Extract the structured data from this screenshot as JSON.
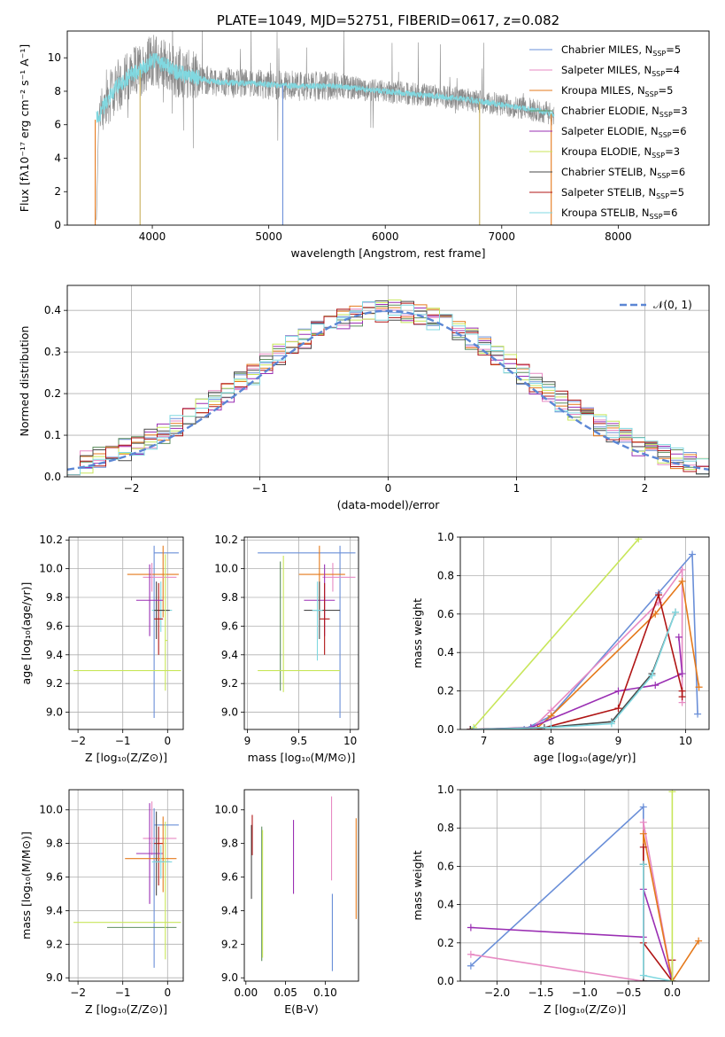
{
  "figure_title": "PLATE=1049, MJD=52751, FIBERID=0617, z=0.082",
  "series_colors": [
    "#6a8fd8",
    "#e78ac3",
    "#e5791b",
    "#5f8f5f",
    "#9a2fb3",
    "#c8e65a",
    "#4a4a4a",
    "#b01515",
    "#80d8e0"
  ],
  "chart_data": [
    {
      "id": "spectrum",
      "type": "line",
      "title": "PLATE=1049, MJD=52751, FIBERID=0617, z=0.082",
      "xlabel": "wavelength [Angstrom, rest frame]",
      "ylabel": "Flux [fλ10⁻¹⁷ erg cm⁻² s⁻¹ A⁻¹]",
      "xlim": [
        3270,
        8780
      ],
      "ylim": [
        0,
        11.6
      ],
      "xticks": [
        4000,
        5000,
        6000,
        7000,
        8000
      ],
      "yticks": [
        0,
        2,
        4,
        6,
        8,
        10
      ],
      "grid": false,
      "legend": "top-right",
      "legend_entries": [
        {
          "main": "Chabrier MILES, N",
          "sub": "SSP",
          "tail": "=5",
          "color": "#6a8fd8"
        },
        {
          "main": "Salpeter MILES, N",
          "sub": "SSP",
          "tail": "=4",
          "color": "#e78ac3"
        },
        {
          "main": "Kroupa MILES, N",
          "sub": "SSP",
          "tail": "=5",
          "color": "#e5791b"
        },
        {
          "main": "Chabrier ELODIE, N",
          "sub": "SSP",
          "tail": "=3",
          "color": "#5f8f5f"
        },
        {
          "main": "Salpeter ELODIE, N",
          "sub": "SSP",
          "tail": "=6",
          "color": "#9a2fb3"
        },
        {
          "main": "Kroupa ELODIE, N",
          "sub": "SSP",
          "tail": "=3",
          "color": "#c8e65a"
        },
        {
          "main": "Chabrier STELIB, N",
          "sub": "SSP",
          "tail": "=6",
          "color": "#4a4a4a"
        },
        {
          "main": "Salpeter STELIB, N",
          "sub": "SSP",
          "tail": "=5",
          "color": "#b01515"
        },
        {
          "main": "Kroupa STELIB, N",
          "sub": "SSP",
          "tail": "=6",
          "color": "#80d8e0"
        }
      ],
      "data_color": "#8a8a8a",
      "model_color": "#80d8e0",
      "continuum": {
        "x": [
          3520,
          3600,
          3700,
          3800,
          3900,
          4000,
          4100,
          4200,
          4300,
          4400,
          4500,
          4700,
          5000,
          5300,
          5600,
          6000,
          6300,
          6600,
          6800,
          7000,
          7200,
          7400,
          7450
        ],
        "y": [
          6.3,
          7.3,
          8.3,
          8.9,
          9.3,
          9.9,
          9.6,
          9.2,
          8.9,
          8.8,
          8.6,
          8.5,
          8.4,
          8.3,
          8.3,
          8.0,
          7.8,
          7.6,
          7.4,
          7.2,
          7.0,
          6.7,
          6.6
        ]
      },
      "data_range": [
        3520,
        7450
      ],
      "drops": [
        3510,
        3895,
        5120,
        6810,
        7425
      ]
    },
    {
      "id": "residuals",
      "type": "bar",
      "xlabel": "(data-model)/error",
      "ylabel": "Normed distribution",
      "xlim": [
        -2.5,
        2.5
      ],
      "ylim": [
        0,
        0.46
      ],
      "xticks": [
        -2,
        -1,
        0,
        1,
        2
      ],
      "yticks": [
        0.0,
        0.1,
        0.2,
        0.3,
        0.4
      ],
      "grid": true,
      "legend": "top-right",
      "legend_label": "𝒩(0, 1)",
      "gauss_color": "#5b86d4",
      "bin_width": 0.1
    },
    {
      "id": "age-vs-Z",
      "type": "scatter",
      "xlabel": "Z [log₁₀(Z/Z⊙)]",
      "ylabel": "age  [log₁₀(age/yr)]",
      "xlim": [
        -2.2,
        0.35
      ],
      "ylim": [
        8.88,
        10.22
      ],
      "xticks": [
        -2,
        -1,
        0
      ],
      "yticks": [
        9.0,
        9.2,
        9.4,
        9.6,
        9.8,
        10.0,
        10.2
      ],
      "grid": true,
      "points": [
        {
          "color": "#6a8fd8",
          "x": -0.3,
          "xerr": [
            0.0,
            0.55
          ],
          "y": 10.11,
          "yerr": [
            1.15,
            0.05
          ]
        },
        {
          "color": "#e5791b",
          "x": -0.1,
          "xerr": [
            0.8,
            0.35
          ],
          "y": 9.96,
          "yerr": [
            0.3,
            0.2
          ]
        },
        {
          "color": "#e78ac3",
          "x": -0.35,
          "xerr": [
            0.2,
            0.55
          ],
          "y": 9.94,
          "yerr": [
            0.1,
            0.1
          ]
        },
        {
          "color": "#80d8e0",
          "x": -0.15,
          "xerr": [
            0.2,
            0.25
          ],
          "y": 9.71,
          "yerr": [
            0.15,
            0.2
          ]
        },
        {
          "color": "#4a4a4a",
          "x": -0.25,
          "xerr": [
            0.05,
            0.3
          ],
          "y": 9.71,
          "yerr": [
            0.2,
            0.2
          ]
        },
        {
          "color": "#b01515",
          "x": -0.2,
          "xerr": [
            0.1,
            0.1
          ],
          "y": 9.65,
          "yerr": [
            0.25,
            0.25
          ]
        },
        {
          "color": "#9a2fb3",
          "x": -0.4,
          "xerr": [
            0.3,
            0.3
          ],
          "y": 9.78,
          "yerr": [
            0.25,
            0.25
          ]
        },
        {
          "color": "#c8e65a",
          "x": -0.05,
          "xerr": [
            0.0,
            0.05
          ],
          "y": 9.5,
          "yerr": [
            0.35,
            0.6
          ]
        },
        {
          "color": "#c8e65a",
          "x": -0.05,
          "xerr": [
            2.05,
            0.35
          ],
          "y": 9.29,
          "yerr": [
            0.0,
            0.0
          ]
        }
      ]
    },
    {
      "id": "age-vs-mass",
      "type": "scatter",
      "xlabel": "mass [log₁₀(M/M⊙)]",
      "ylabel": "",
      "xlim": [
        8.97,
        10.08
      ],
      "ylim": [
        8.88,
        10.22
      ],
      "xticks": [
        9.0,
        9.5,
        10.0
      ],
      "yticks": [
        9.0,
        9.2,
        9.4,
        9.6,
        9.8,
        10.0,
        10.2
      ],
      "grid": true,
      "points": [
        {
          "color": "#6a8fd8",
          "x": 9.9,
          "xerr": [
            0.8,
            0.15
          ],
          "y": 10.11,
          "yerr": [
            1.15,
            0.05
          ]
        },
        {
          "color": "#e78ac3",
          "x": 9.83,
          "xerr": [
            0.1,
            0.22
          ],
          "y": 9.94,
          "yerr": [
            0.1,
            0.1
          ]
        },
        {
          "color": "#e5791b",
          "x": 9.7,
          "xerr": [
            0.2,
            0.25
          ],
          "y": 9.96,
          "yerr": [
            0.3,
            0.2
          ]
        },
        {
          "color": "#9a2fb3",
          "x": 9.75,
          "xerr": [
            0.2,
            0.1
          ],
          "y": 9.78,
          "yerr": [
            0.25,
            0.25
          ]
        },
        {
          "color": "#4a4a4a",
          "x": 9.7,
          "xerr": [
            0.15,
            0.2
          ],
          "y": 9.71,
          "yerr": [
            0.2,
            0.2
          ]
        },
        {
          "color": "#80d8e0",
          "x": 9.68,
          "xerr": [
            0.05,
            0.05
          ],
          "y": 9.71,
          "yerr": [
            0.35,
            0.2
          ]
        },
        {
          "color": "#b01515",
          "x": 9.75,
          "xerr": [
            0.05,
            0.05
          ],
          "y": 9.65,
          "yerr": [
            0.25,
            0.25
          ]
        },
        {
          "color": "#5f8f5f",
          "x": 9.32,
          "xerr": [
            0.0,
            0.0
          ],
          "y": 9.6,
          "yerr": [
            0.45,
            0.45
          ]
        },
        {
          "color": "#c8e65a",
          "x": 9.35,
          "xerr": [
            0.25,
            0.55
          ],
          "y": 9.29,
          "yerr": [
            0.15,
            0.8
          ]
        }
      ]
    },
    {
      "id": "weight-vs-age",
      "type": "line",
      "xlabel": "age  [log₁₀(age/yr)]",
      "ylabel": "mass weight",
      "xlim": [
        6.65,
        10.35
      ],
      "ylim": [
        0.0,
        1.0
      ],
      "xticks": [
        7,
        8,
        9,
        10
      ],
      "yticks": [
        0.0,
        0.2,
        0.4,
        0.6,
        0.8,
        1.0
      ],
      "grid": true,
      "series": [
        {
          "color": "#c8e65a",
          "x": [
            6.8,
            6.85,
            9.3
          ],
          "y": [
            0.0,
            0.01,
            0.99
          ]
        },
        {
          "color": "#6a8fd8",
          "x": [
            6.8,
            7.6,
            8.0,
            9.6,
            10.1,
            10.18
          ],
          "y": [
            0.0,
            0.0,
            0.07,
            0.71,
            0.91,
            0.08
          ]
        },
        {
          "color": "#e78ac3",
          "x": [
            6.8,
            7.7,
            8.0,
            9.6,
            9.95,
            9.95
          ],
          "y": [
            0.0,
            0.0,
            0.1,
            0.66,
            0.83,
            0.14
          ]
        },
        {
          "color": "#e5791b",
          "x": [
            6.8,
            7.8,
            8.0,
            9.55,
            9.95,
            10.2
          ],
          "y": [
            0.0,
            0.01,
            0.07,
            0.6,
            0.77,
            0.22
          ]
        },
        {
          "color": "#9a2fb3",
          "x": [
            6.8,
            7.7,
            9.0,
            9.55,
            9.95,
            9.9
          ],
          "y": [
            0.0,
            0.01,
            0.2,
            0.23,
            0.29,
            0.48
          ]
        },
        {
          "color": "#b01515",
          "x": [
            6.8,
            7.8,
            9.0,
            9.6,
            9.95,
            9.95
          ],
          "y": [
            0.0,
            0.0,
            0.11,
            0.7,
            0.2,
            0.17
          ]
        },
        {
          "color": "#4a4a4a",
          "x": [
            6.8,
            7.9,
            8.9,
            9.5,
            9.85
          ],
          "y": [
            0.0,
            0.01,
            0.04,
            0.29,
            0.61
          ]
        },
        {
          "color": "#80d8e0",
          "x": [
            6.85,
            8.0,
            8.9,
            9.5,
            9.85
          ],
          "y": [
            0.0,
            0.01,
            0.03,
            0.28,
            0.61
          ]
        }
      ]
    },
    {
      "id": "mass-vs-Z",
      "type": "scatter",
      "xlabel": "Z [log₁₀(Z/Z⊙)]",
      "ylabel": "mass [log₁₀(M/M⊙)]",
      "xlim": [
        -2.2,
        0.35
      ],
      "ylim": [
        8.98,
        10.12
      ],
      "xticks": [
        -2,
        -1,
        0
      ],
      "yticks": [
        9.0,
        9.2,
        9.4,
        9.6,
        9.8,
        10.0
      ],
      "grid": true,
      "points": [
        {
          "color": "#6a8fd8",
          "x": -0.3,
          "xerr": [
            0.0,
            0.55
          ],
          "y": 9.91,
          "yerr": [
            0.85,
            0.1
          ]
        },
        {
          "color": "#e78ac3",
          "x": -0.35,
          "xerr": [
            0.2,
            0.55
          ],
          "y": 9.83,
          "yerr": [
            0.1,
            0.22
          ]
        },
        {
          "color": "#b01515",
          "x": -0.2,
          "xerr": [
            0.1,
            0.1
          ],
          "y": 9.8,
          "yerr": [
            0.25,
            0.1
          ]
        },
        {
          "color": "#9a2fb3",
          "x": -0.4,
          "xerr": [
            0.3,
            0.3
          ],
          "y": 9.74,
          "yerr": [
            0.3,
            0.3
          ]
        },
        {
          "color": "#e5791b",
          "x": -0.1,
          "xerr": [
            0.85,
            0.3
          ],
          "y": 9.71,
          "yerr": [
            0.2,
            0.25
          ]
        },
        {
          "color": "#4a4a4a",
          "x": -0.25,
          "xerr": [
            0.05,
            0.3
          ],
          "y": 9.69,
          "yerr": [
            0.2,
            0.3
          ]
        },
        {
          "color": "#80d8e0",
          "x": -0.15,
          "xerr": [
            0.2,
            0.25
          ],
          "y": 9.69,
          "yerr": [
            0.1,
            0.1
          ]
        },
        {
          "color": "#5f8f5f",
          "x": -0.05,
          "xerr": [
            1.3,
            0.25
          ],
          "y": 9.3,
          "yerr": [
            0.0,
            0.0
          ]
        },
        {
          "color": "#c8e65a",
          "x": -0.05,
          "xerr": [
            2.05,
            0.35
          ],
          "y": 9.33,
          "yerr": [
            0.22,
            0.6
          ]
        }
      ]
    },
    {
      "id": "mass-vs-ebv",
      "type": "scatter",
      "xlabel": "E(B-V)",
      "ylabel": "",
      "xlim": [
        -0.002,
        0.142
      ],
      "ylim": [
        8.98,
        10.12
      ],
      "xticks": [
        0.0,
        0.05,
        0.1
      ],
      "xtick_labels": [
        "0.00",
        "0.05",
        "0.10"
      ],
      "yticks": [
        9.0,
        9.2,
        9.4,
        9.6,
        9.8,
        10.0
      ],
      "grid": false,
      "points": [
        {
          "color": "#4a4a4a",
          "x": 0.007,
          "xerr": [
            0.0,
            0.0
          ],
          "y": 9.69,
          "yerr": [
            0.22,
            0.22
          ]
        },
        {
          "color": "#b01515",
          "x": 0.008,
          "xerr": [
            0.0,
            0.0
          ],
          "y": 9.85,
          "yerr": [
            0.12,
            0.12
          ]
        },
        {
          "color": "#5f8f5f",
          "x": 0.02,
          "xerr": [
            0.0,
            0.0
          ],
          "y": 9.5,
          "yerr": [
            0.4,
            0.4
          ]
        },
        {
          "color": "#c8e65a",
          "x": 0.021,
          "xerr": [
            0.0,
            0.0
          ],
          "y": 9.6,
          "yerr": [
            0.48,
            0.28
          ]
        },
        {
          "color": "#9a2fb3",
          "x": 0.06,
          "xerr": [
            0.0,
            0.0
          ],
          "y": 9.72,
          "yerr": [
            0.22,
            0.22
          ]
        },
        {
          "color": "#e78ac3",
          "x": 0.108,
          "xerr": [
            0.0,
            0.0
          ],
          "y": 9.83,
          "yerr": [
            0.25,
            0.25
          ]
        },
        {
          "color": "#6a8fd8",
          "x": 0.109,
          "xerr": [
            0.0,
            0.0
          ],
          "y": 9.2,
          "yerr": [
            0.16,
            0.3
          ]
        },
        {
          "color": "#e5791b",
          "x": 0.139,
          "xerr": [
            0.0,
            0.0
          ],
          "y": 9.65,
          "yerr": [
            0.3,
            0.3
          ]
        }
      ]
    },
    {
      "id": "weight-vs-Z",
      "type": "line",
      "xlabel": "Z [log₁₀(Z/Z⊙)]",
      "ylabel": "mass weight",
      "xlim": [
        -2.42,
        0.42
      ],
      "ylim": [
        0.0,
        1.0
      ],
      "xticks": [
        -2.0,
        -1.5,
        -1.0,
        -0.5,
        0.0
      ],
      "xtick_labels": [
        "−2.0",
        "−1.5",
        "−1.0",
        "−0.5",
        "0.0"
      ],
      "yticks": [
        0.0,
        0.2,
        0.4,
        0.6,
        0.8,
        1.0
      ],
      "grid": true,
      "series": [
        {
          "color": "#6a8fd8",
          "x": [
            -2.3,
            -0.33,
            -0.33,
            0.0
          ],
          "y": [
            0.08,
            0.91,
            0.0,
            0.0
          ]
        },
        {
          "color": "#e78ac3",
          "x": [
            -2.3,
            -0.33,
            -0.33,
            0.0
          ],
          "y": [
            0.14,
            0.0,
            0.83,
            0.0
          ]
        },
        {
          "color": "#e5791b",
          "x": [
            0.3,
            0.0,
            -0.33,
            -0.33
          ],
          "y": [
            0.21,
            0.0,
            0.77,
            0.0
          ]
        },
        {
          "color": "#9a2fb3",
          "x": [
            -2.3,
            -0.33,
            -0.33,
            0.0
          ],
          "y": [
            0.28,
            0.23,
            0.48,
            0.0
          ]
        },
        {
          "color": "#b01515",
          "x": [
            -0.33,
            -0.33,
            0.0,
            0.0
          ],
          "y": [
            0.7,
            0.2,
            0.0,
            0.11
          ]
        },
        {
          "color": "#4a4a4a",
          "x": [
            -0.33,
            -0.33,
            0.0
          ],
          "y": [
            0.61,
            0.0,
            0.0
          ]
        },
        {
          "color": "#80d8e0",
          "x": [
            -0.33,
            -0.33,
            0.0
          ],
          "y": [
            0.61,
            0.03,
            0.0
          ]
        },
        {
          "color": "#c8e65a",
          "x": [
            0.0,
            0.0
          ],
          "y": [
            0.0,
            0.99
          ]
        }
      ]
    }
  ]
}
